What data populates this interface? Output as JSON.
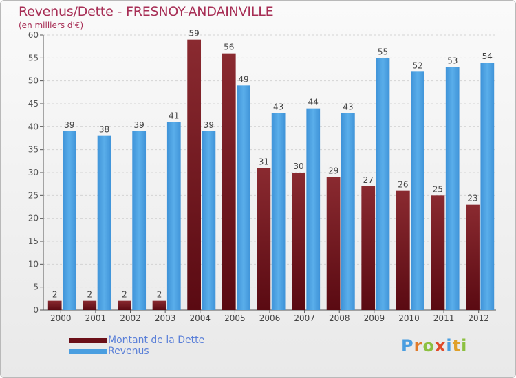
{
  "title": "Revenus/Dette - FRESNOY-ANDAINVILLE",
  "subtitle": "(en milliers d'€)",
  "chart_data": {
    "type": "bar",
    "categories": [
      "2000",
      "2001",
      "2002",
      "2003",
      "2004",
      "2005",
      "2006",
      "2007",
      "2008",
      "2009",
      "2010",
      "2011",
      "2012"
    ],
    "series": [
      {
        "name": "Montant de la Dette",
        "color": "#7a1a24",
        "values": [
          2,
          2,
          2,
          2,
          59,
          56,
          31,
          30,
          29,
          27,
          26,
          25,
          23
        ]
      },
      {
        "name": "Revenus",
        "color": "#4a9ee0",
        "values": [
          39,
          38,
          39,
          41,
          39,
          49,
          43,
          44,
          43,
          55,
          52,
          53,
          54
        ]
      }
    ],
    "ylim": [
      0,
      60
    ],
    "yticks": [
      0,
      5,
      10,
      15,
      20,
      25,
      30,
      35,
      40,
      45,
      50,
      55,
      60
    ],
    "grid": true,
    "data_labels": true,
    "legend_position": "bottom-left"
  },
  "legend": {
    "items": [
      {
        "label": "Montant de la Dette",
        "color": "#6b0f18"
      },
      {
        "label": "Revenus",
        "color": "#4a9ee0"
      }
    ]
  },
  "logo": {
    "letters": [
      "P",
      "r",
      "o",
      "x",
      "i",
      "t",
      "i"
    ],
    "colors": [
      "#4a9ee0",
      "#e07a2a",
      "#8cc040",
      "#e04a2a",
      "#4a9ee0",
      "#e0a02a",
      "#8cc040"
    ]
  }
}
